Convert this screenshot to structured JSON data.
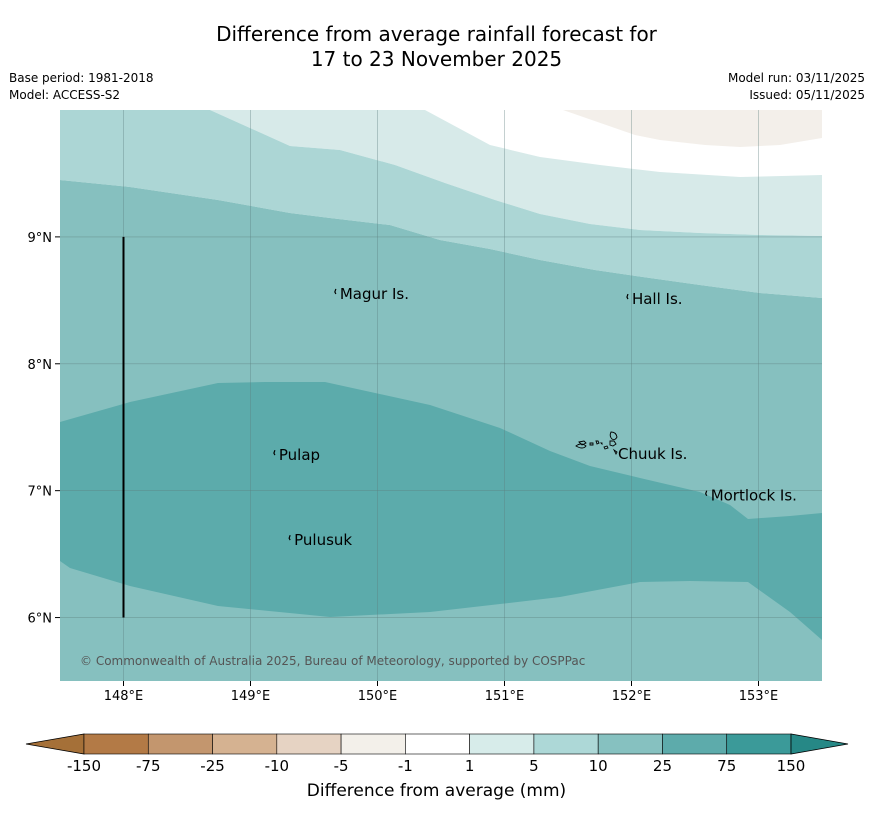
{
  "title": {
    "line1": "Difference from average rainfall forecast for",
    "line2": "17 to 23 November 2025"
  },
  "meta": {
    "base_period": "Base period: 1981-2018",
    "model": "Model: ACCESS-S2",
    "model_run": "Model run: 03/11/2025",
    "issued": "Issued: 05/11/2025"
  },
  "map": {
    "extent": {
      "lon_min": 147.5,
      "lon_max": 153.5,
      "lat_min": 5.5,
      "lat_max": 10.0
    },
    "lat_ticks": [
      {
        "value": 9,
        "label": "9°N"
      },
      {
        "value": 8,
        "label": "8°N"
      },
      {
        "value": 7,
        "label": "7°N"
      },
      {
        "value": 6,
        "label": "6°N"
      }
    ],
    "lon_ticks": [
      {
        "value": 148,
        "label": "148°E"
      },
      {
        "value": 149,
        "label": "149°E"
      },
      {
        "value": 150,
        "label": "150°E"
      },
      {
        "value": 151,
        "label": "151°E"
      },
      {
        "value": 152,
        "label": "152°E"
      },
      {
        "value": 153,
        "label": "153°E"
      }
    ],
    "boundary_line": {
      "lon": 148.0,
      "lat_from": 6.0,
      "lat_to": 9.0
    },
    "places": [
      {
        "name": "Magur Is.",
        "lon": 149.68,
        "lat": 8.55
      },
      {
        "name": "Hall Is.",
        "lon": 151.98,
        "lat": 8.51
      },
      {
        "name": "Pulap",
        "lon": 149.2,
        "lat": 7.28
      },
      {
        "name": "Chuuk Is.",
        "lon": 151.87,
        "lat": 7.29
      },
      {
        "name": "Mortlock Is.",
        "lon": 152.6,
        "lat": 6.96
      },
      {
        "name": "Pulusuk",
        "lon": 149.32,
        "lat": 6.61
      }
    ],
    "copyright": "© Commonwealth of Australia 2025, Bureau of Meteorology, supported by COSPPac"
  },
  "colorbar": {
    "title": "Difference from average (mm)",
    "ticks": [
      "-150",
      "-75",
      "-25",
      "-10",
      "-5",
      "-1",
      "1",
      "5",
      "10",
      "25",
      "75",
      "150"
    ],
    "colors": [
      "#a57038",
      "#b37a46",
      "#c3966e",
      "#d5b291",
      "#e6d3c3",
      "#f3f0ea",
      "#ffffff",
      "#d7ecea",
      "#add8d7",
      "#86c1c0",
      "#5dabab",
      "#3b9a99",
      "#268886"
    ]
  }
}
